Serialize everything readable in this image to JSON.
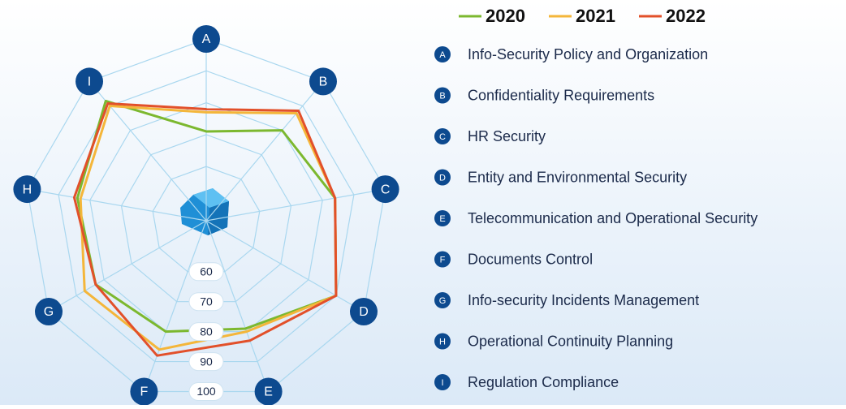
{
  "chart_data": {
    "type": "radar",
    "categories": [
      "A",
      "B",
      "C",
      "D",
      "E",
      "F",
      "G",
      "H",
      "I"
    ],
    "category_descriptions": [
      "Info-Security Policy and Organization",
      "Confidentiality Requirements",
      "HR Security",
      "Entity and Environmental Security",
      "Telecommunication and Operational Security",
      "Documents Control",
      "Info-security Incidents Management",
      "Operational Continuity Planning",
      "Regulation Compliance"
    ],
    "series": [
      {
        "name": "2020",
        "color": "#7cb82f",
        "values": [
          71,
          80,
          84,
          90,
          79,
          80,
          83,
          84,
          92
        ]
      },
      {
        "name": "2021",
        "color": "#f4b63a",
        "values": [
          77,
          87,
          84,
          90,
          80,
          86,
          87,
          83,
          90
        ]
      },
      {
        "name": "2022",
        "color": "#e2502a",
        "values": [
          78,
          88,
          84,
          90,
          83,
          88,
          83,
          85,
          91
        ]
      }
    ],
    "ylim": [
      43,
      100
    ],
    "yticks": [
      60,
      70,
      80,
      90,
      100
    ],
    "grid": true
  }
}
